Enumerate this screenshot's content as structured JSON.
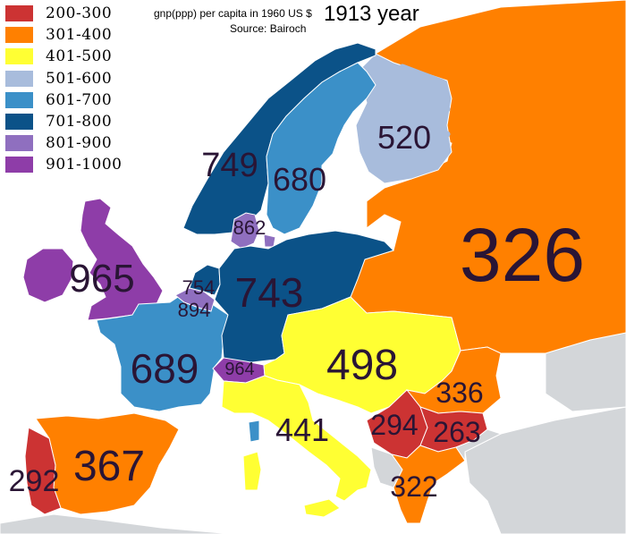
{
  "map": {
    "title": "1913 year",
    "subtitle": "gnp(ppp) per capita in 1960 US $",
    "source": "Source: Bairoch",
    "legend": [
      {
        "label": "200-300",
        "color": "#cc3333"
      },
      {
        "label": "301-400",
        "color": "#ff8000"
      },
      {
        "label": "401-500",
        "color": "#ffff33"
      },
      {
        "label": "501-600",
        "color": "#a8bcdc"
      },
      {
        "label": "601-700",
        "color": "#3b90c8"
      },
      {
        "label": "701-800",
        "color": "#0b5288"
      },
      {
        "label": "801-900",
        "color": "#8f6fbf"
      },
      {
        "label": "901-1000",
        "color": "#8e3da8"
      }
    ],
    "values": {
      "uk": "965",
      "france": "689",
      "spain": "367",
      "portugal": "292",
      "germany": "743",
      "netherlands": "754",
      "belgium": "894",
      "switzerland": "964",
      "denmark": "862",
      "norway": "749",
      "sweden": "680",
      "finland": "520",
      "russia": "326",
      "austria_hungary": "498",
      "italy": "441",
      "romania": "336",
      "serbia": "294",
      "bulgaria": "263",
      "greece": "322"
    }
  }
}
